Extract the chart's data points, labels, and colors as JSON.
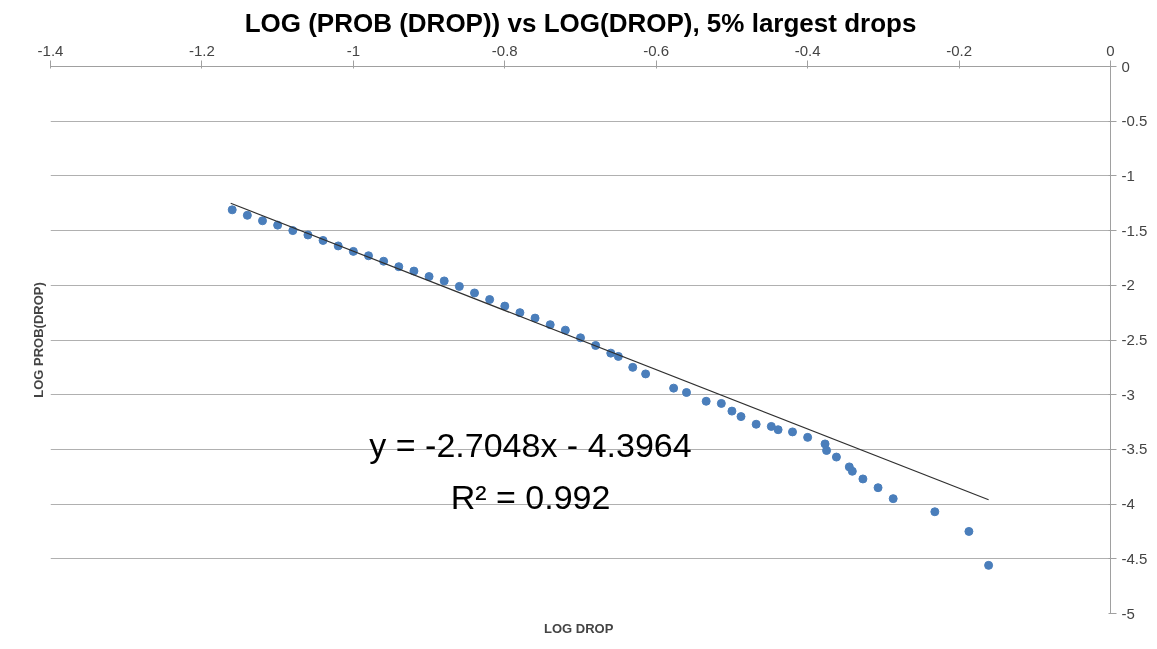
{
  "chart_data": {
    "type": "scatter",
    "title": "LOG (PROB (DROP)) vs LOG(DROP), 5% largest drops",
    "xlabel": "LOG  DROP",
    "ylabel": "LOG PROB(DROP)",
    "xlim": [
      -1.4,
      0
    ],
    "ylim": [
      -5,
      0
    ],
    "xticks": [
      -1.4,
      -1.2,
      -1,
      -0.8,
      -0.6,
      -0.4,
      -0.2,
      0
    ],
    "yticks": [
      0,
      -0.5,
      -1,
      -1.5,
      -2,
      -2.5,
      -3,
      -3.5,
      -4,
      -4.5,
      -5
    ],
    "grid": "y",
    "marker": "circle",
    "annotations": [
      "y = -2.7048x - 4.3964",
      "R² = 0.992"
    ],
    "series": [
      {
        "color": "#4a7ebb",
        "x": [
          -1.16,
          -1.14,
          -1.12,
          -1.1,
          -1.08,
          -1.06,
          -1.04,
          -1.02,
          -1.0,
          -0.98,
          -0.96,
          -0.94,
          -0.92,
          -0.9,
          -0.88,
          -0.86,
          -0.84,
          -0.82,
          -0.8,
          -0.78,
          -0.76,
          -0.74,
          -0.72,
          -0.7,
          -0.68,
          -0.66,
          -0.65,
          -0.631,
          -0.614,
          -0.577,
          -0.56,
          -0.534,
          -0.514,
          -0.5,
          -0.488,
          -0.468,
          -0.448,
          -0.439,
          -0.42,
          -0.4,
          -0.377,
          -0.375,
          -0.362,
          -0.345,
          -0.341,
          -0.327,
          -0.307,
          -0.287,
          -0.232,
          -0.187,
          -0.161
        ],
        "values": [
          -1.31,
          -1.36,
          -1.41,
          -1.45,
          -1.5,
          -1.54,
          -1.59,
          -1.64,
          -1.69,
          -1.73,
          -1.78,
          -1.83,
          -1.87,
          -1.92,
          -1.96,
          -2.01,
          -2.07,
          -2.13,
          -2.19,
          -2.25,
          -2.3,
          -2.36,
          -2.41,
          -2.48,
          -2.55,
          -2.62,
          -2.65,
          -2.75,
          -2.81,
          -2.94,
          -2.98,
          -3.06,
          -3.08,
          -3.15,
          -3.2,
          -3.27,
          -3.29,
          -3.32,
          -3.34,
          -3.39,
          -3.45,
          -3.51,
          -3.57,
          -3.66,
          -3.7,
          -3.77,
          -3.85,
          -3.95,
          -4.07,
          -4.25,
          -4.56
        ]
      },
      {
        "type": "line",
        "marker": "none",
        "color": "#303030",
        "x": [
          -1.162,
          -0.161
        ],
        "values": [
          -1.25,
          -3.96
        ]
      }
    ]
  }
}
